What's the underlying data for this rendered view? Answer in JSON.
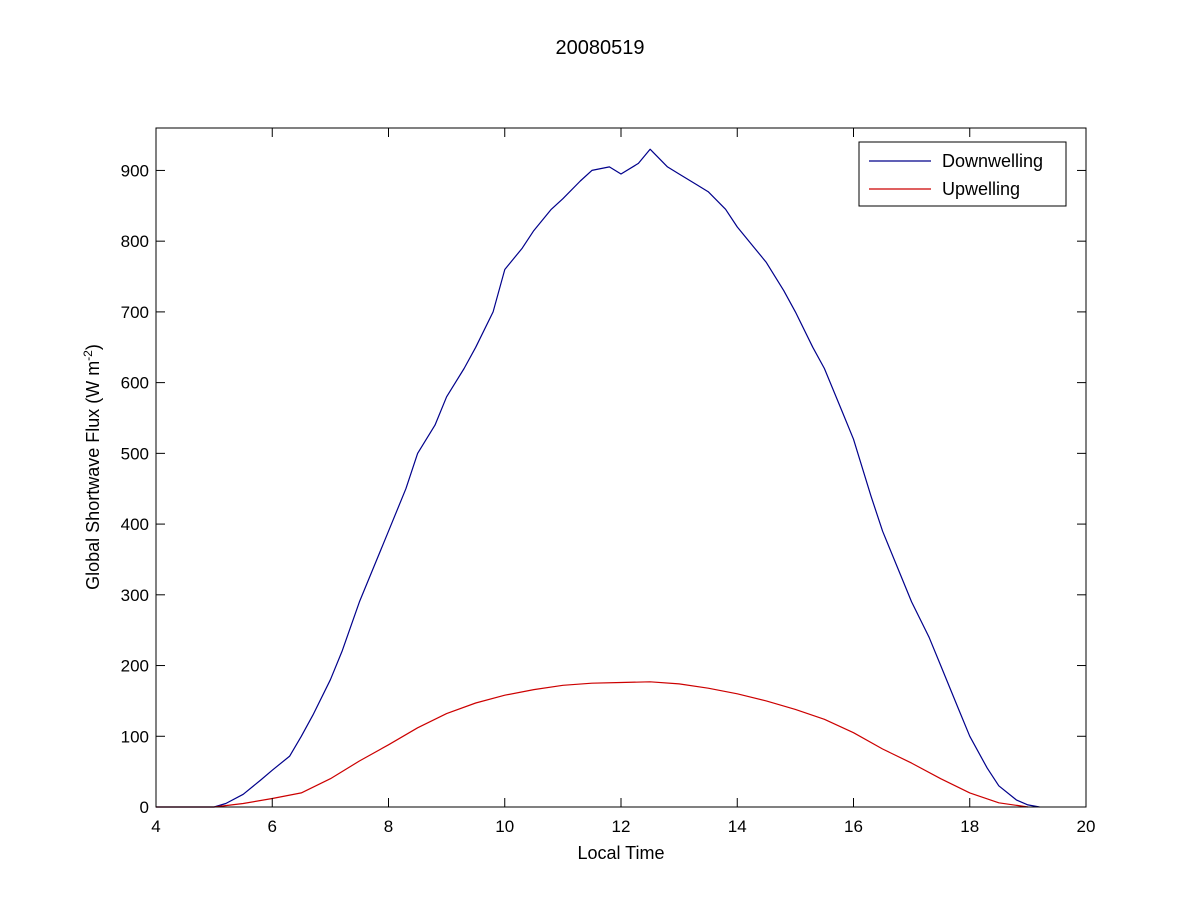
{
  "chart_data": {
    "type": "line",
    "title": "20080519",
    "xlabel": "Local Time",
    "ylabel": "Global Shortwave Flux (W m",
    "ylabel_sup": "-2",
    "ylabel_close": ")",
    "xlim": [
      4,
      20
    ],
    "ylim": [
      0,
      960
    ],
    "xticks": [
      4,
      6,
      8,
      10,
      12,
      14,
      16,
      18,
      20
    ],
    "yticks": [
      0,
      100,
      200,
      300,
      400,
      500,
      600,
      700,
      800,
      900
    ],
    "grid": false,
    "legend_position": "top-right",
    "series": [
      {
        "name": "Downwelling",
        "color": "#00008b",
        "x": [
          4.0,
          5.0,
          5.2,
          5.5,
          5.8,
          6.0,
          6.3,
          6.5,
          6.7,
          7.0,
          7.2,
          7.5,
          7.8,
          8.0,
          8.3,
          8.5,
          8.8,
          9.0,
          9.3,
          9.5,
          9.8,
          10.0,
          10.3,
          10.5,
          10.8,
          11.0,
          11.3,
          11.5,
          11.8,
          12.0,
          12.3,
          12.5,
          12.8,
          13.0,
          13.3,
          13.5,
          13.8,
          14.0,
          14.3,
          14.5,
          14.8,
          15.0,
          15.3,
          15.5,
          15.8,
          16.0,
          16.3,
          16.5,
          16.8,
          17.0,
          17.3,
          17.5,
          17.8,
          18.0,
          18.3,
          18.5,
          18.8,
          19.0,
          19.2
        ],
        "y": [
          0,
          0,
          5,
          18,
          38,
          52,
          72,
          100,
          130,
          180,
          220,
          290,
          350,
          390,
          450,
          500,
          540,
          580,
          620,
          650,
          700,
          760,
          790,
          815,
          845,
          860,
          885,
          900,
          905,
          895,
          910,
          930,
          905,
          895,
          880,
          870,
          845,
          820,
          790,
          770,
          730,
          700,
          650,
          620,
          560,
          520,
          440,
          390,
          330,
          290,
          240,
          200,
          140,
          100,
          55,
          30,
          10,
          3,
          0
        ]
      },
      {
        "name": "Upwelling",
        "color": "#cc0000",
        "x": [
          4.0,
          5.0,
          5.5,
          6.0,
          6.5,
          7.0,
          7.5,
          8.0,
          8.5,
          9.0,
          9.5,
          10.0,
          10.5,
          11.0,
          11.5,
          12.0,
          12.5,
          13.0,
          13.5,
          14.0,
          14.5,
          15.0,
          15.5,
          16.0,
          16.5,
          17.0,
          17.5,
          18.0,
          18.5,
          19.0
        ],
        "y": [
          0,
          0,
          5,
          12,
          20,
          40,
          65,
          88,
          112,
          132,
          147,
          158,
          166,
          172,
          175,
          176,
          177,
          174,
          168,
          160,
          150,
          138,
          124,
          105,
          82,
          62,
          40,
          20,
          6,
          0
        ]
      }
    ]
  }
}
